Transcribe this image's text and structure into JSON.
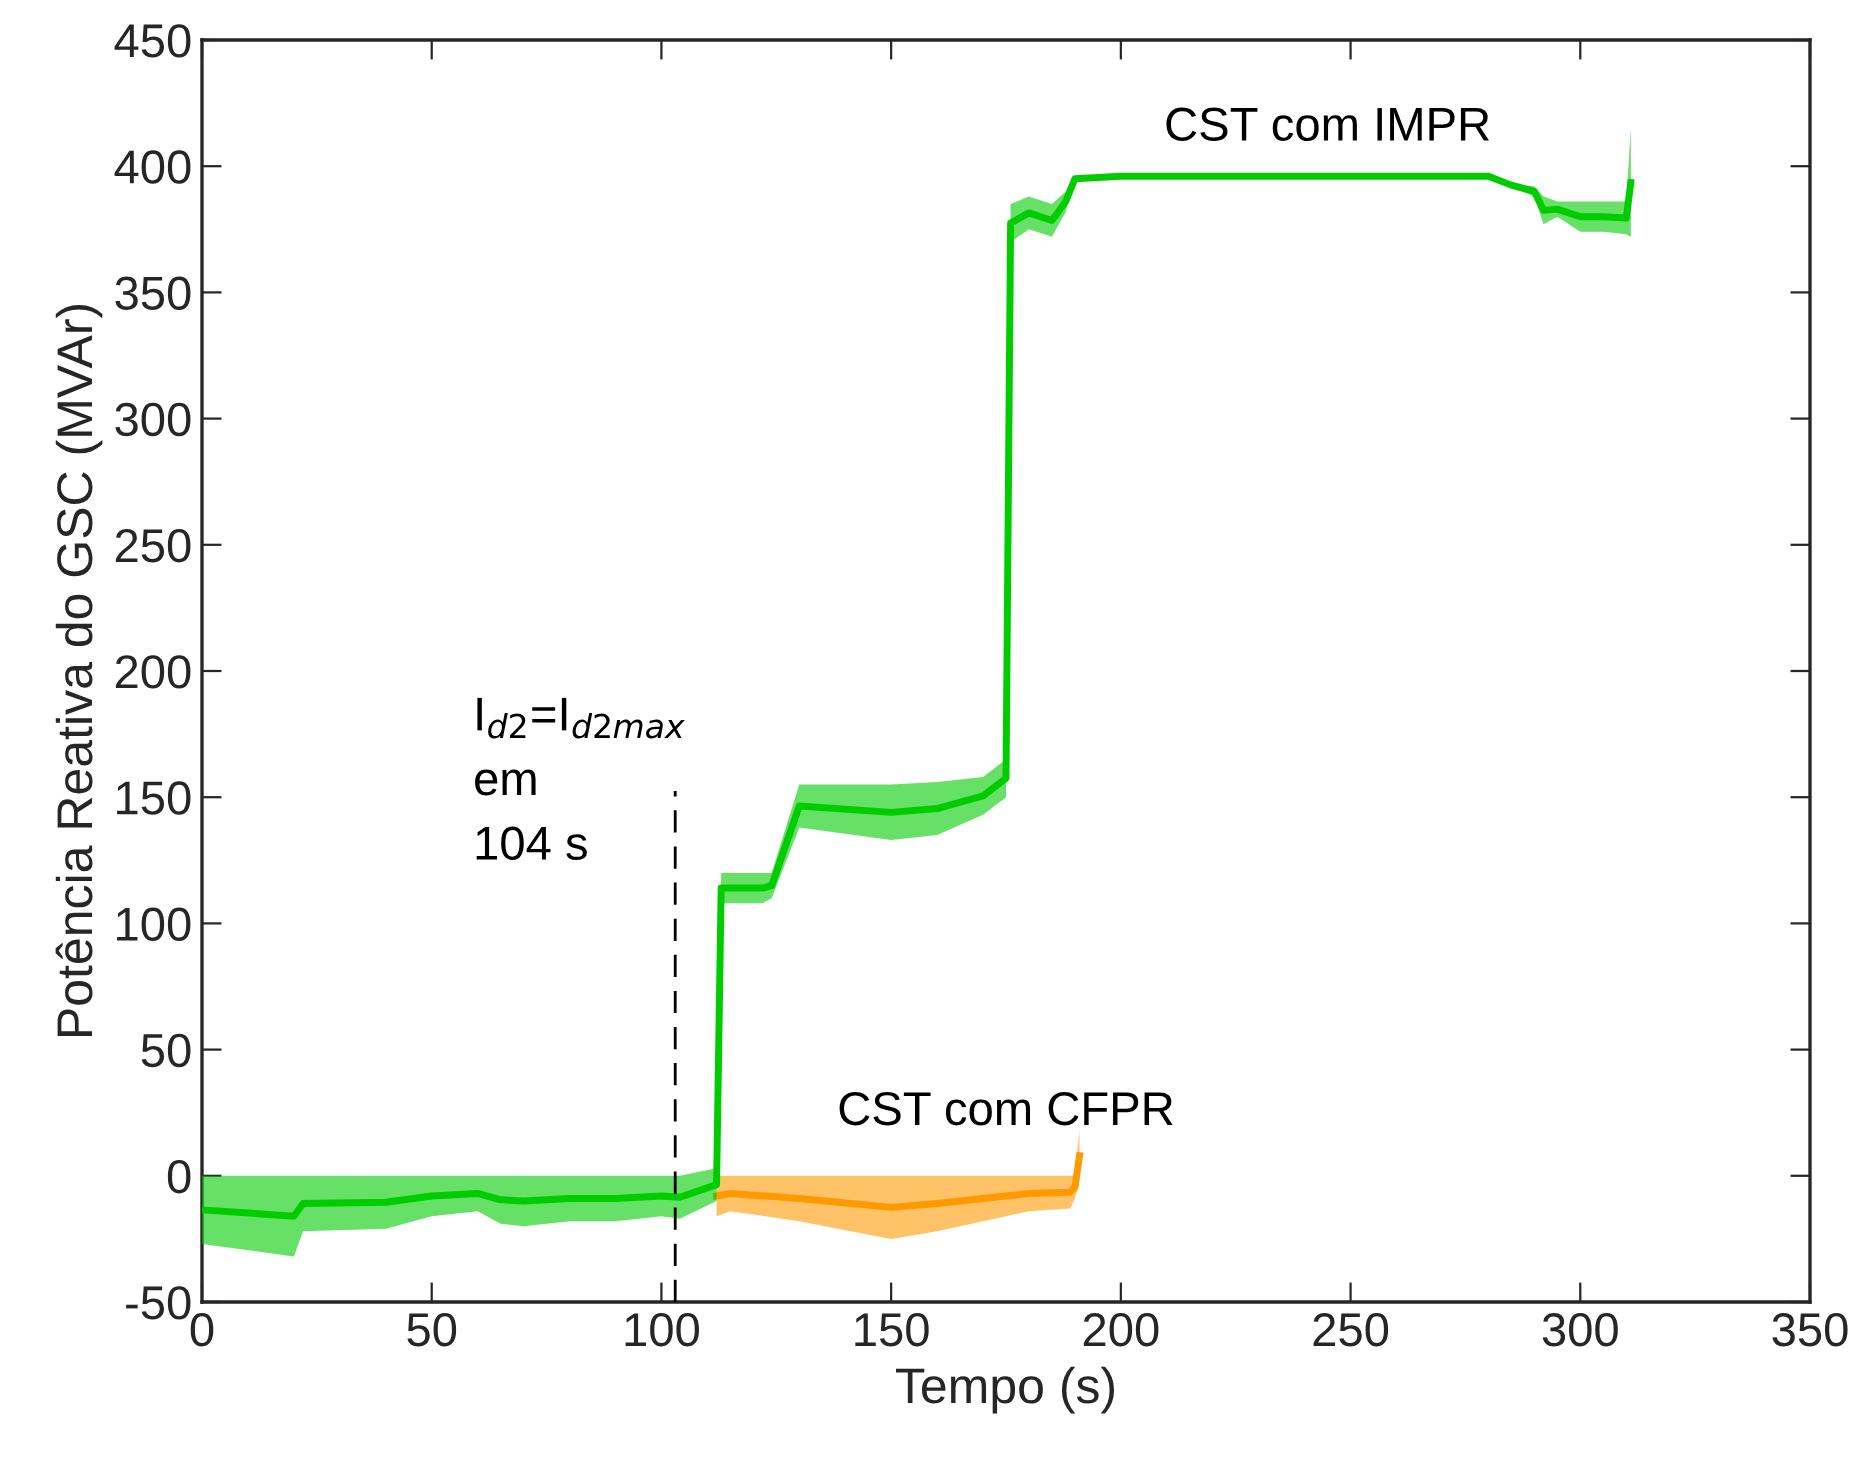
{
  "chart_data": {
    "type": "line",
    "xlabel": "Tempo (s)",
    "ylabel": "Potência Reativa do GSC (MVAr)",
    "xlim": [
      0,
      350
    ],
    "xticks": [
      0,
      50,
      100,
      150,
      200,
      250,
      300,
      350
    ],
    "ylim": [
      -50,
      450
    ],
    "yticks": [
      -50,
      0,
      50,
      100,
      150,
      200,
      250,
      300,
      350,
      400,
      450
    ],
    "grid": false,
    "legend": false,
    "series": [
      {
        "name": "CST com CFPR",
        "color": "#ff9900",
        "x": [
          112,
          115,
          130,
          150,
          160,
          170,
          180,
          189,
          190,
          191
        ],
        "lower": [
          -16,
          -14,
          -18,
          -25,
          -22,
          -18,
          -14,
          -13,
          -9,
          -2
        ],
        "upper": [
          0,
          0,
          0,
          0,
          0,
          0,
          0,
          0,
          0,
          18
        ],
        "values": [
          -8,
          -7,
          -9,
          -12.5,
          -11,
          -9,
          -7,
          -6.5,
          -4.5,
          8
        ]
      },
      {
        "name": "CST com IMPR",
        "color": "#00cc00",
        "x": [
          0,
          20,
          22,
          40,
          50,
          60,
          65,
          70,
          80,
          90,
          100,
          104,
          112,
          113,
          122,
          124,
          130,
          150,
          160,
          170,
          175,
          176,
          180,
          185,
          188,
          190,
          200,
          280,
          285,
          290,
          292,
          295,
          300,
          305,
          310,
          311
        ],
        "lower": [
          -27,
          -32,
          -22,
          -21,
          -16,
          -14,
          -19,
          -20,
          -18,
          -18,
          -16,
          -17,
          -10,
          108,
          108,
          110,
          138,
          133,
          135,
          143,
          150,
          370,
          375,
          372,
          382,
          394,
          395,
          395,
          392,
          388,
          377,
          380,
          374,
          374,
          373,
          372
        ],
        "upper": [
          0,
          0,
          0,
          0,
          0,
          0,
          0,
          0,
          0,
          0,
          0,
          0,
          3,
          120,
          120,
          120,
          155,
          155,
          156,
          158,
          165,
          385,
          388,
          385,
          390,
          396,
          397,
          397,
          393,
          392,
          388,
          386,
          386,
          386,
          386,
          415
        ],
        "values": [
          -13.5,
          -16,
          -11,
          -10.5,
          -8,
          -7,
          -9.5,
          -10,
          -9,
          -9,
          -8,
          -8.5,
          -3.5,
          114,
          114,
          115,
          146.5,
          144,
          145.5,
          150.5,
          157.5,
          377.5,
          381.5,
          378.5,
          386,
          395,
          396,
          396,
          392.5,
          390,
          382.5,
          383,
          380,
          380,
          379.5,
          393.5
        ]
      }
    ],
    "ref_lines": [
      {
        "axis": "x",
        "value": 103,
        "label": "I$_{d2}$=I$_{d2max}$\nem\n104 s",
        "color": "#000000",
        "line_style": "dashed"
      }
    ]
  }
}
